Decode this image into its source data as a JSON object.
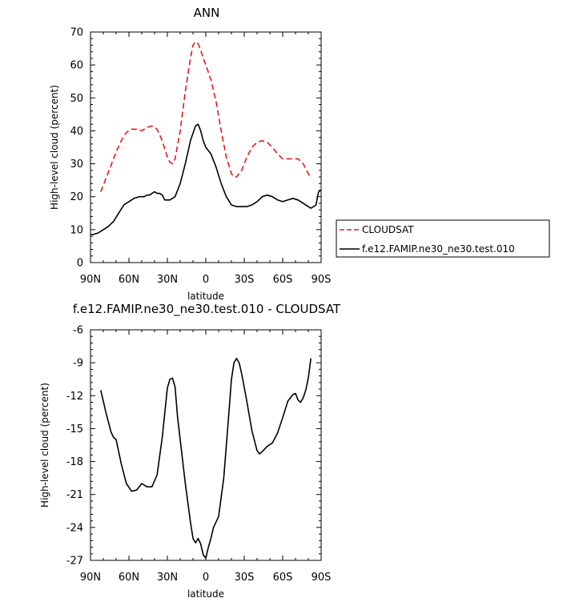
{
  "chart_data": [
    {
      "type": "line",
      "title": "ANN",
      "xlabel": "latitude",
      "ylabel": "High-level cloud (percent)",
      "xlim": [
        -90,
        90
      ],
      "ylim": [
        0,
        70
      ],
      "yticks": [
        0,
        10,
        20,
        30,
        40,
        50,
        60,
        70
      ],
      "xticks": [
        {
          "value": -90,
          "label": "90N"
        },
        {
          "value": -60,
          "label": "60N"
        },
        {
          "value": -30,
          "label": "30N"
        },
        {
          "value": 0,
          "label": "0"
        },
        {
          "value": 30,
          "label": "30S"
        },
        {
          "value": 60,
          "label": "60S"
        },
        {
          "value": 90,
          "label": "90S"
        }
      ],
      "legend_position": "right",
      "series": [
        {
          "name": "CLOUDSAT",
          "color": "#e01b1b",
          "dash": "dashed",
          "x": [
            -82,
            -78,
            -74,
            -70,
            -66,
            -62,
            -58,
            -54,
            -50,
            -46,
            -42,
            -38,
            -34,
            -30,
            -28,
            -26,
            -24,
            -20,
            -16,
            -12,
            -10,
            -8,
            -6,
            -4,
            -2,
            0,
            4,
            8,
            12,
            16,
            20,
            22,
            24,
            28,
            32,
            36,
            40,
            44,
            48,
            52,
            56,
            60,
            64,
            68,
            72,
            76,
            80,
            82
          ],
          "y": [
            21.5,
            25.5,
            29.5,
            33.5,
            37,
            39.5,
            40.5,
            40.5,
            40,
            41,
            41.5,
            40.5,
            37,
            32,
            30.5,
            30,
            31.5,
            40,
            52,
            62,
            66,
            67,
            66.5,
            64.5,
            62,
            60,
            55.5,
            49,
            40,
            32,
            27,
            26,
            26,
            28,
            32,
            35,
            36.5,
            37,
            36.5,
            35,
            33,
            31.5,
            31.5,
            31.5,
            31.5,
            30,
            27,
            25.5
          ]
        },
        {
          "name": "f.e12.FAMIP.ne30_ne30.test.010",
          "color": "#000000",
          "dash": "solid",
          "x": [
            -90,
            -88,
            -84,
            -80,
            -76,
            -72,
            -68,
            -64,
            -60,
            -56,
            -52,
            -48,
            -46,
            -44,
            -42,
            -40,
            -38,
            -36,
            -34,
            -32,
            -28,
            -24,
            -20,
            -16,
            -12,
            -8,
            -6,
            -4,
            -2,
            0,
            4,
            8,
            12,
            16,
            20,
            24,
            28,
            32,
            36,
            40,
            44,
            48,
            52,
            56,
            60,
            64,
            68,
            72,
            76,
            80,
            82,
            84,
            86,
            88,
            90
          ],
          "y": [
            8.5,
            8.5,
            9,
            10,
            11,
            12.5,
            15,
            17.5,
            18.5,
            19.5,
            20,
            20,
            20.5,
            20.5,
            21,
            21.5,
            21,
            21,
            20.5,
            19,
            19,
            20,
            24,
            30,
            37,
            41.5,
            42,
            40,
            37,
            35,
            33,
            29,
            24,
            20,
            17.5,
            17,
            17,
            17,
            17.5,
            18.5,
            20,
            20.5,
            20,
            19,
            18.5,
            19,
            19.5,
            19,
            18,
            17,
            16.5,
            17,
            17.5,
            21.5,
            22
          ]
        }
      ]
    },
    {
      "type": "line",
      "title": "f.e12.FAMIP.ne30_ne30.test.010 - CLOUDSAT",
      "xlabel": "latitude",
      "ylabel": "High-level cloud (percent)",
      "xlim": [
        -90,
        90
      ],
      "ylim": [
        -27,
        -6
      ],
      "yticks": [
        -27,
        -24,
        -21,
        -18,
        -15,
        -12,
        -9,
        -6
      ],
      "xticks": [
        {
          "value": -90,
          "label": "90N"
        },
        {
          "value": -60,
          "label": "60N"
        },
        {
          "value": -30,
          "label": "30N"
        },
        {
          "value": 0,
          "label": "0"
        },
        {
          "value": 30,
          "label": "30S"
        },
        {
          "value": 60,
          "label": "60S"
        },
        {
          "value": 90,
          "label": "90S"
        }
      ],
      "series": [
        {
          "color": "#000000",
          "dash": "solid",
          "x": [
            -82,
            -78,
            -74,
            -72,
            -70,
            -66,
            -62,
            -58,
            -54,
            -50,
            -46,
            -42,
            -38,
            -34,
            -30,
            -28,
            -26,
            -24,
            -22,
            -20,
            -16,
            -12,
            -10,
            -8,
            -6,
            -4,
            -2,
            0,
            2,
            4,
            6,
            10,
            14,
            18,
            20,
            22,
            24,
            26,
            28,
            32,
            36,
            40,
            42,
            44,
            48,
            52,
            56,
            60,
            64,
            68,
            70,
            72,
            74,
            76,
            78,
            80,
            82
          ],
          "y": [
            -11.5,
            -13.5,
            -15.3,
            -15.8,
            -16,
            -18.2,
            -20,
            -20.7,
            -20.6,
            -20,
            -20.3,
            -20.3,
            -19.2,
            -15.8,
            -11.3,
            -10.5,
            -10.4,
            -11.2,
            -14,
            -16,
            -20,
            -23.5,
            -25,
            -25.4,
            -25,
            -25.5,
            -26.5,
            -26.8,
            -25.8,
            -25,
            -24,
            -23,
            -19.5,
            -13.6,
            -10.5,
            -9,
            -8.6,
            -9,
            -10,
            -12.5,
            -15.2,
            -17,
            -17.3,
            -17.1,
            -16.6,
            -16.3,
            -15.4,
            -14,
            -12.5,
            -11.9,
            -11.8,
            -12.4,
            -12.6,
            -12.2,
            -11.5,
            -10.4,
            -8.6
          ]
        }
      ]
    }
  ]
}
